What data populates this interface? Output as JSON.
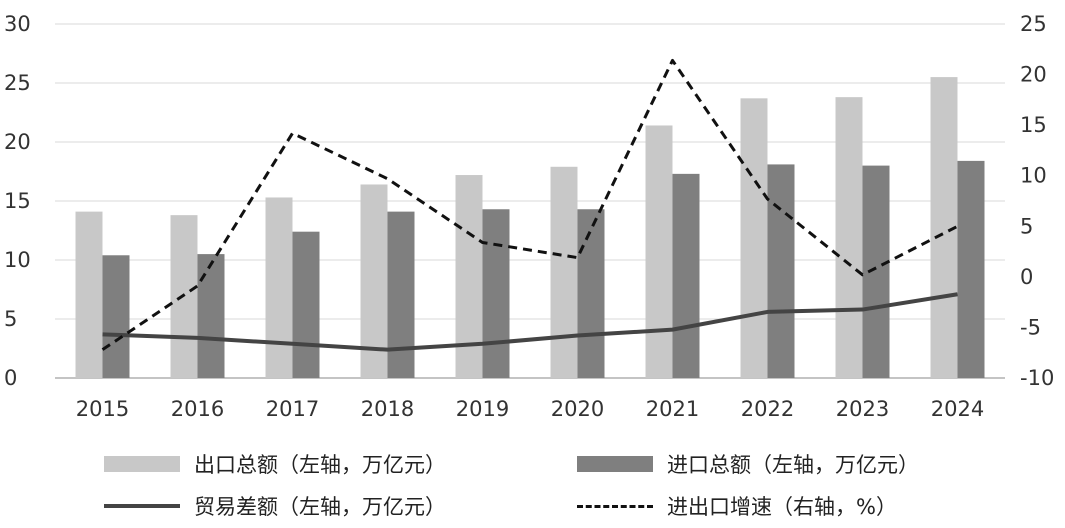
{
  "chart_data": {
    "type": "bar",
    "categories": [
      "2015",
      "2016",
      "2017",
      "2018",
      "2019",
      "2020",
      "2021",
      "2022",
      "2023",
      "2024"
    ],
    "series": [
      {
        "name": "出口总额（左轴，万亿元）",
        "kind": "bar",
        "axis": "left",
        "color": "#c8c8c8",
        "values": [
          14.1,
          13.8,
          15.3,
          16.4,
          17.2,
          17.9,
          21.4,
          23.7,
          23.8,
          25.5
        ]
      },
      {
        "name": "进口总额（左轴，万亿元）",
        "kind": "bar",
        "axis": "left",
        "color": "#7f7f7f",
        "values": [
          10.4,
          10.5,
          12.4,
          14.1,
          14.3,
          14.3,
          17.3,
          18.1,
          18.0,
          18.4
        ]
      },
      {
        "name": "贸易差额（左轴，万亿元）",
        "kind": "line",
        "axis": "left",
        "color": "#444444",
        "values": [
          3.7,
          3.4,
          2.9,
          2.4,
          2.9,
          3.6,
          4.1,
          5.6,
          5.8,
          7.1
        ]
      },
      {
        "name": "进出口增速（右轴，%）",
        "kind": "dashed-line",
        "axis": "right",
        "color": "#111111",
        "values": [
          -7.2,
          -0.9,
          14.2,
          9.7,
          3.4,
          1.9,
          21.4,
          7.7,
          0.2,
          5.0
        ]
      }
    ],
    "left_axis": {
      "min": 0,
      "max": 30,
      "ticks": [
        0,
        5,
        10,
        15,
        20,
        25,
        30
      ]
    },
    "right_axis": {
      "min": -10,
      "max": 25,
      "ticks": [
        -10,
        -5,
        0,
        5,
        10,
        15,
        20,
        25
      ]
    },
    "grid": true,
    "legend_position": "bottom"
  }
}
